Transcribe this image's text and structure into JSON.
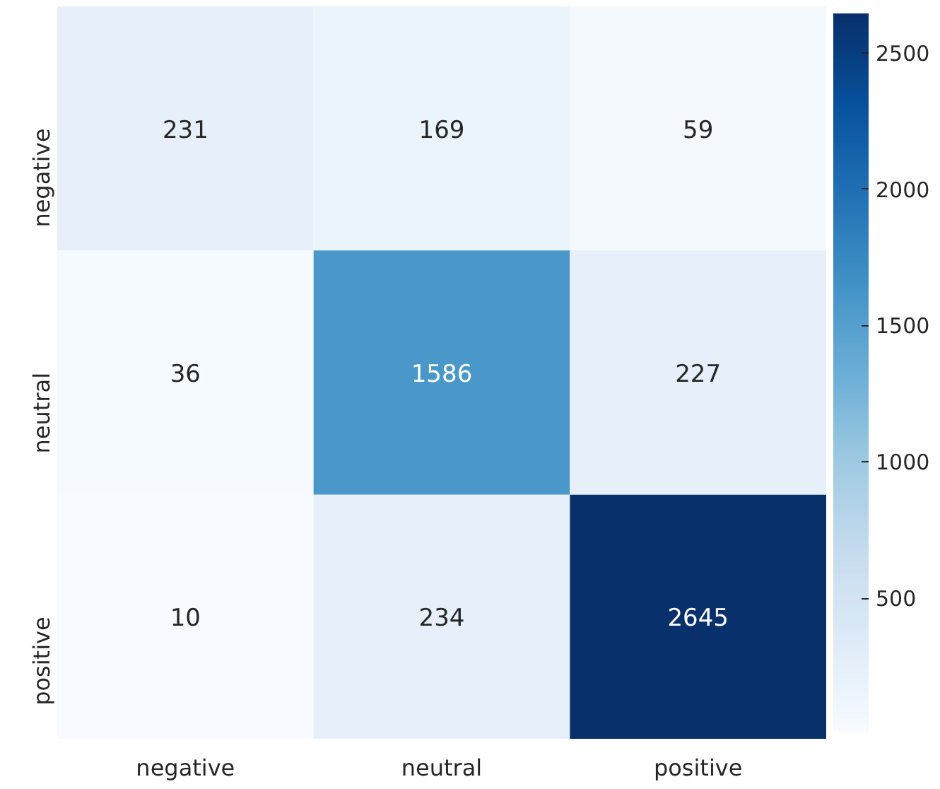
{
  "chart_data": {
    "type": "heatmap",
    "categories": [
      "negative",
      "neutral",
      "positive"
    ],
    "y_categories": [
      "negative",
      "neutral",
      "positive"
    ],
    "cells": [
      [
        231,
        169,
        59
      ],
      [
        36,
        1586,
        227
      ],
      [
        10,
        234,
        2645
      ]
    ],
    "clim": [
      10,
      2645
    ],
    "data_labels": true,
    "cticks": [
      500,
      1000,
      1500,
      2000,
      2500
    ]
  }
}
